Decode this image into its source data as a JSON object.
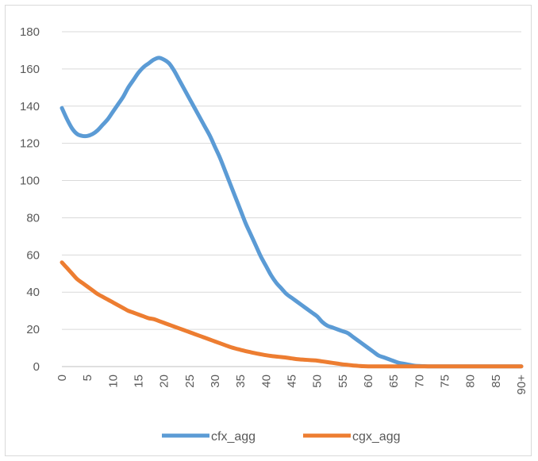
{
  "chart_data": {
    "type": "line",
    "title": "",
    "xlabel": "",
    "ylabel": "",
    "categories": [
      "0",
      "1",
      "2",
      "3",
      "4",
      "5",
      "6",
      "7",
      "8",
      "9",
      "10",
      "11",
      "12",
      "13",
      "14",
      "15",
      "16",
      "17",
      "18",
      "19",
      "20",
      "21",
      "22",
      "23",
      "24",
      "25",
      "26",
      "27",
      "28",
      "29",
      "30",
      "31",
      "32",
      "33",
      "34",
      "35",
      "36",
      "37",
      "38",
      "39",
      "40",
      "41",
      "42",
      "43",
      "44",
      "45",
      "46",
      "47",
      "48",
      "49",
      "50",
      "51",
      "52",
      "53",
      "54",
      "55",
      "56",
      "57",
      "58",
      "59",
      "60",
      "61",
      "62",
      "63",
      "64",
      "65",
      "66",
      "67",
      "68",
      "69",
      "70",
      "71",
      "72",
      "73",
      "74",
      "75",
      "76",
      "77",
      "78",
      "79",
      "80",
      "81",
      "82",
      "83",
      "84",
      "85",
      "86",
      "87",
      "88",
      "89",
      "90+"
    ],
    "tick_labels": [
      "0",
      "5",
      "10",
      "15",
      "20",
      "25",
      "30",
      "35",
      "40",
      "45",
      "50",
      "55",
      "60",
      "65",
      "70",
      "75",
      "80",
      "85",
      "90+"
    ],
    "ylim": [
      0,
      180
    ],
    "yticks": [
      0,
      20,
      40,
      60,
      80,
      100,
      120,
      140,
      160,
      180
    ],
    "grid": true,
    "legend_position": "bottom",
    "series": [
      {
        "name": "cfx_agg",
        "color": "#5B9BD5",
        "values": [
          139,
          133,
          128,
          125,
          124,
          124,
          125,
          127,
          130,
          133,
          137,
          141,
          145,
          150,
          154,
          158,
          161,
          163,
          165,
          166,
          165,
          163,
          159,
          154,
          149,
          144,
          139,
          134,
          129,
          124,
          118,
          112,
          105,
          98,
          91,
          84,
          77,
          71,
          65,
          59,
          54,
          49,
          45,
          42,
          39,
          37,
          35,
          33,
          31,
          29,
          27,
          24,
          22,
          21,
          20,
          19,
          18,
          16,
          14,
          12,
          10,
          8,
          6,
          5,
          4,
          3,
          2,
          1.5,
          1,
          0.5,
          0.3,
          0.2,
          0.1,
          0.1,
          0.1,
          0.1,
          0.1,
          0.1,
          0.1,
          0.1,
          0.1,
          0.1,
          0.1,
          0.1,
          0.1,
          0.1,
          0.1,
          0.1,
          0.1,
          0.1,
          0.1
        ]
      },
      {
        "name": "cgx_agg",
        "color": "#ED7D31",
        "values": [
          56,
          53,
          50,
          47,
          45,
          43,
          41,
          39,
          37.5,
          36,
          34.5,
          33,
          31.5,
          30,
          29,
          28,
          27,
          26,
          25.5,
          24.5,
          23.5,
          22.5,
          21.5,
          20.5,
          19.5,
          18.5,
          17.5,
          16.5,
          15.5,
          14.5,
          13.5,
          12.5,
          11.5,
          10.5,
          9.7,
          9,
          8.3,
          7.7,
          7.1,
          6.6,
          6.1,
          5.7,
          5.4,
          5.1,
          4.8,
          4.4,
          4,
          3.8,
          3.6,
          3.4,
          3.2,
          2.8,
          2.4,
          2,
          1.6,
          1.2,
          0.9,
          0.6,
          0.4,
          0.2,
          0.1,
          0.1,
          0.1,
          0.1,
          0.1,
          0.1,
          0.1,
          0.1,
          0.1,
          0.1,
          0.1,
          0.1,
          0.1,
          0.1,
          0.1,
          0.1,
          0.1,
          0.1,
          0.1,
          0.1,
          0.1,
          0.1,
          0.1,
          0.1,
          0.1,
          0.1,
          0.1,
          0.1,
          0.1,
          0.1,
          0.1
        ]
      }
    ]
  }
}
